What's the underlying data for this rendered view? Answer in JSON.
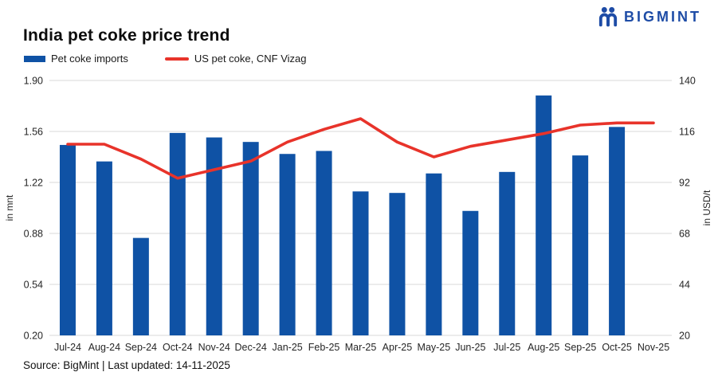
{
  "header": {
    "title": "India pet coke price trend",
    "logo_text": "BIGMINT",
    "brand_color": "#1e4ca6"
  },
  "legend": [
    {
      "label": "Pet coke imports",
      "color": "#0f52a5",
      "type": "bar"
    },
    {
      "label": "US pet coke, CNF Vizag",
      "color": "#e8332a",
      "type": "line"
    }
  ],
  "footer": {
    "source": "Source: BigMint | Last updated: 14-11-2025"
  },
  "chart_data": {
    "type": "bar",
    "subtype": "bar-and-line-dual-axis",
    "title": "India pet coke price trend",
    "grid": true,
    "grid_color": "#d9d9d9",
    "categories": [
      "Jul-24",
      "Aug-24",
      "Sep-24",
      "Oct-24",
      "Nov-24",
      "Dec-24",
      "Jan-25",
      "Feb-25",
      "Mar-25",
      "Apr-25",
      "May-25",
      "Jun-25",
      "Jul-25",
      "Aug-25",
      "Sep-25",
      "Oct-25",
      "Nov-25"
    ],
    "series": [
      {
        "name": "Pet coke imports",
        "type": "bar",
        "axis": "left",
        "color": "#0f52a5",
        "values": [
          1.47,
          1.36,
          0.85,
          1.55,
          1.52,
          1.49,
          1.41,
          1.43,
          1.16,
          1.15,
          1.28,
          1.03,
          1.29,
          1.8,
          1.4,
          1.59,
          null
        ]
      },
      {
        "name": "US pet coke, CNF Vizag",
        "type": "line",
        "axis": "right",
        "color": "#e8332a",
        "values": [
          110,
          110,
          103,
          94,
          98,
          102,
          111,
          117,
          122,
          111,
          104,
          109,
          112,
          115,
          119,
          120,
          120
        ]
      }
    ],
    "left_axis": {
      "label": "in mnt",
      "min": 0.2,
      "max": 1.9,
      "ticks": [
        "1.90",
        "1.56",
        "1.22",
        "0.88",
        "0.54",
        "0.20"
      ]
    },
    "right_axis": {
      "label": "in USD/t",
      "min": 20,
      "max": 140,
      "ticks": [
        "140",
        "116",
        "92",
        "68",
        "44",
        "20"
      ]
    },
    "legend_position": "top-left"
  }
}
